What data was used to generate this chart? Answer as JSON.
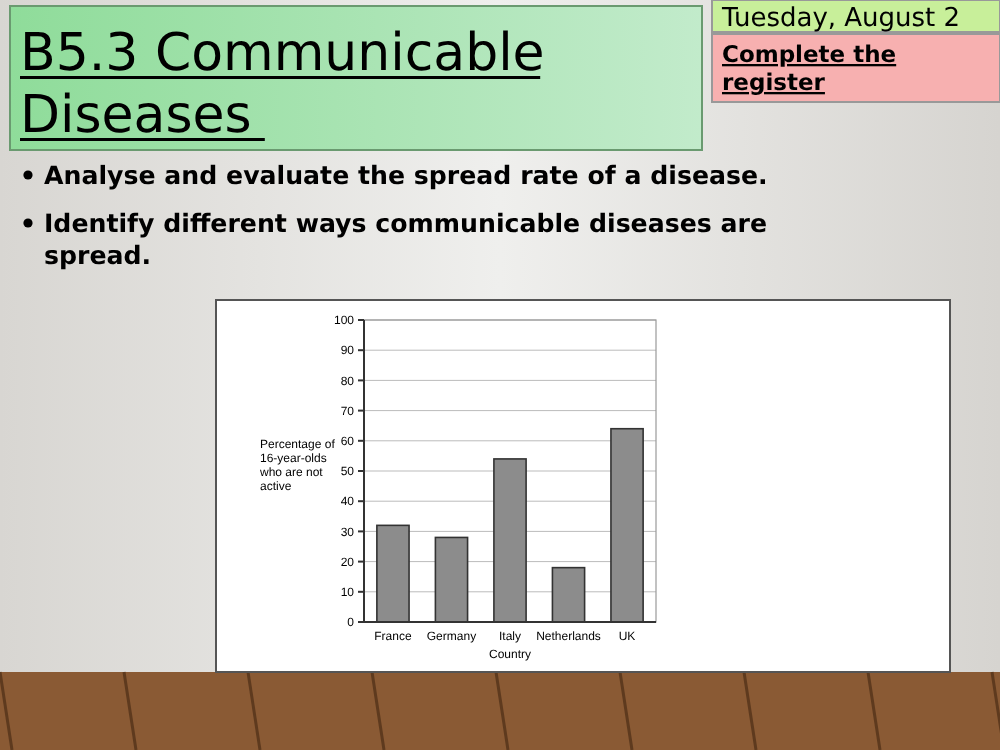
{
  "chart_data": {
    "type": "bar",
    "title": "B5.3 Communicable Diseases",
    "annotations": [
      "Tuesday, August 2",
      "Complete the register",
      "Analyse and evaluate the spread rate of a disease.",
      "Identify different ways communicable diseases are spread."
    ],
    "xlabel": "Country",
    "ylabel": "Percentage of 16-year-olds who are not active",
    "categories": [
      "France",
      "Germany",
      "Italy",
      "Netherlands",
      "UK"
    ],
    "values": [
      32,
      28,
      54,
      18,
      64
    ],
    "color": "#8c8c8c",
    "ylim": [
      0,
      100
    ],
    "yticks": [
      0,
      10,
      20,
      30,
      40,
      50,
      60,
      70,
      80,
      90,
      100
    ],
    "grid": true
  }
}
